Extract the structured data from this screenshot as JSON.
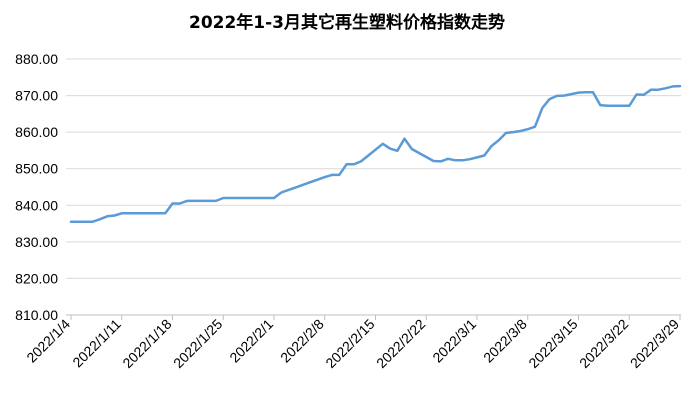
{
  "chart_data": {
    "type": "line",
    "title": "2022年1-3月其它再生塑料价格指数走势",
    "xlabel": "",
    "ylabel": "",
    "ylim": [
      810,
      880
    ],
    "yticks": [
      "810.00",
      "820.00",
      "830.00",
      "840.00",
      "850.00",
      "860.00",
      "870.00",
      "880.00"
    ],
    "categories": [
      "2022/1/4",
      "2022/1/11",
      "2022/1/18",
      "2022/1/25",
      "2022/2/1",
      "2022/2/8",
      "2022/2/15",
      "2022/2/22",
      "2022/3/1",
      "2022/3/8",
      "2022/3/15",
      "2022/3/22",
      "2022/3/29"
    ],
    "grid": true,
    "legend": "none",
    "line_color": "#5b9bd5",
    "series": [
      {
        "x": [
          0,
          1,
          2,
          3,
          4,
          5,
          6,
          7,
          8,
          9,
          10,
          11,
          12,
          13,
          14,
          15,
          16,
          17,
          18,
          19,
          20,
          21,
          22,
          23,
          24,
          25,
          26,
          27,
          28,
          29,
          30,
          31,
          32,
          33,
          34,
          35,
          36,
          37,
          38,
          39,
          40,
          41,
          42,
          43,
          44,
          45,
          46,
          47,
          48,
          49,
          50,
          51,
          52,
          53,
          54,
          55,
          56,
          57,
          58,
          59,
          60,
          61,
          62,
          63,
          64,
          65,
          66,
          67,
          68,
          69,
          70,
          71,
          72,
          73,
          74,
          75,
          76,
          77,
          78,
          79,
          80,
          81,
          82,
          83,
          84
        ],
        "values": [
          835.5,
          835.5,
          835.5,
          835.5,
          836.2,
          837.0,
          837.2,
          837.8,
          837.8,
          837.8,
          837.8,
          837.8,
          837.8,
          837.8,
          840.5,
          840.5,
          841.2,
          841.2,
          841.2,
          841.2,
          841.2,
          842.0,
          842.0,
          842.0,
          842.0,
          842.0,
          842.0,
          842.0,
          842.0,
          843.5,
          844.2,
          844.9,
          845.6,
          846.3,
          847.0,
          847.7,
          848.3,
          848.3,
          851.2,
          851.2,
          852.0,
          853.6,
          855.2,
          856.8,
          855.5,
          854.9,
          858.2,
          855.4,
          854.3,
          853.2,
          852.1,
          852.0,
          852.7,
          852.3,
          852.3,
          852.6,
          853.1,
          853.6,
          856.2,
          857.8,
          859.8,
          860.0,
          860.3,
          860.8,
          861.5,
          866.6,
          869.0,
          869.9,
          870.0,
          870.4,
          870.8,
          870.9,
          870.9,
          867.4,
          867.2,
          867.2,
          867.2,
          867.2,
          870.3,
          870.2,
          871.6,
          871.6,
          872.0,
          872.5,
          872.6
        ]
      }
    ]
  }
}
